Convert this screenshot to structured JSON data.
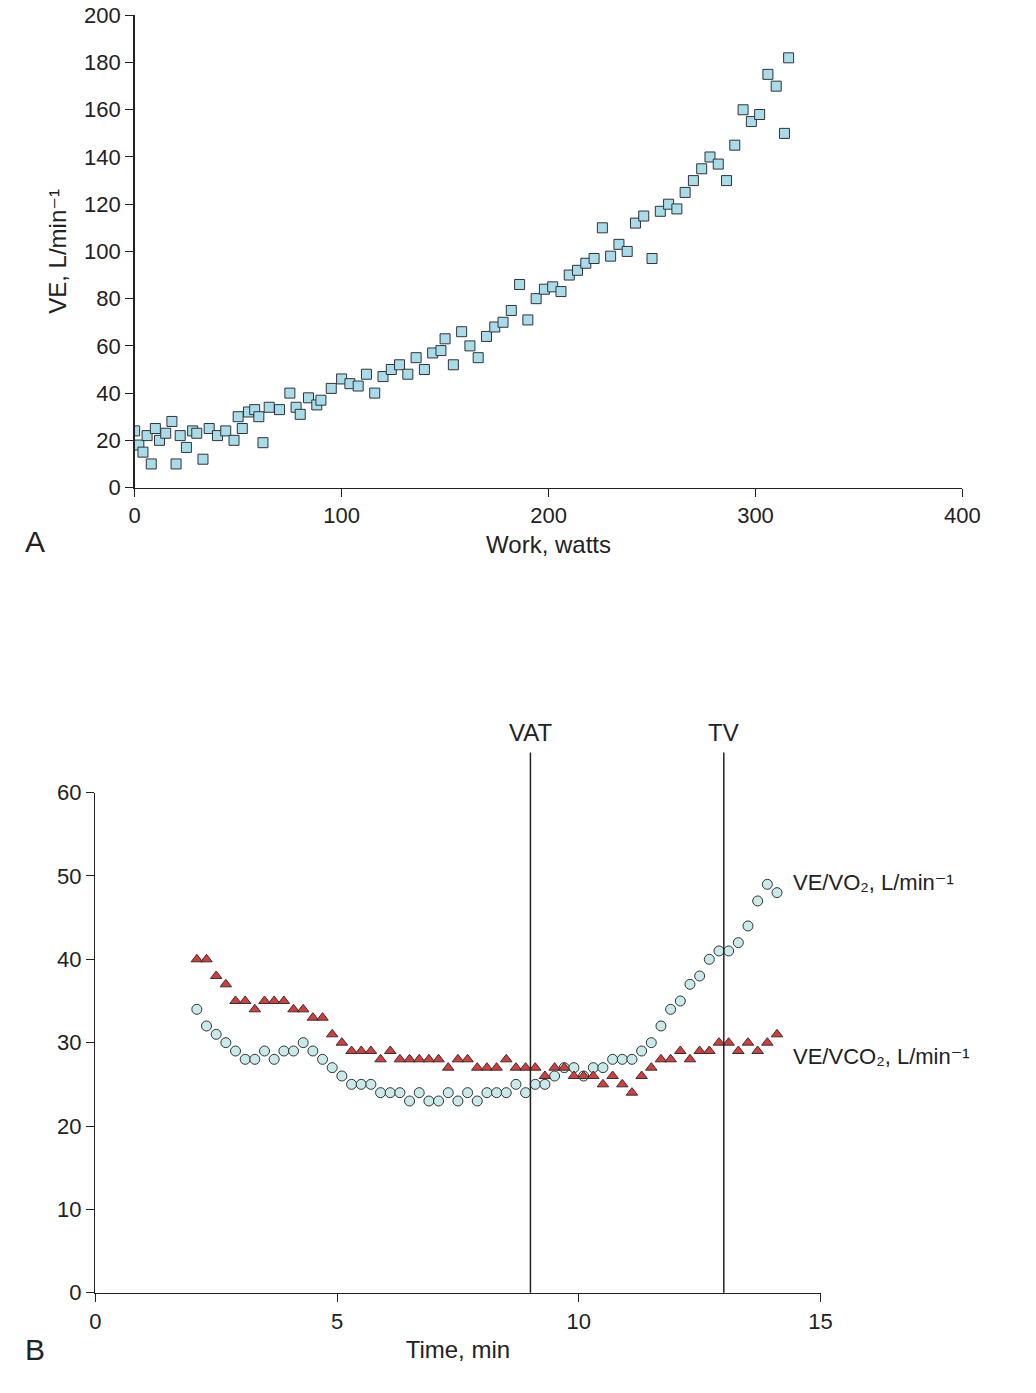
{
  "chart_data": [
    {
      "type": "scatter",
      "title": "A",
      "x_label": "Work, watts",
      "y_label": "VE, L/min⁻¹",
      "xlim": [
        0,
        400
      ],
      "xticks": [
        0,
        100,
        200,
        300,
        400
      ],
      "ylim": [
        0,
        200
      ],
      "yticks": [
        0,
        20,
        40,
        60,
        80,
        100,
        120,
        140,
        160,
        180,
        200
      ],
      "grid": false,
      "marker": "square",
      "color": "#a8dcea",
      "x": [
        0,
        2,
        4,
        6,
        8,
        10,
        12,
        15,
        18,
        20,
        22,
        25,
        28,
        30,
        33,
        36,
        40,
        44,
        48,
        50,
        52,
        55,
        58,
        60,
        62,
        65,
        70,
        75,
        78,
        80,
        84,
        88,
        90,
        95,
        100,
        104,
        108,
        112,
        116,
        120,
        124,
        128,
        132,
        136,
        140,
        144,
        148,
        150,
        154,
        158,
        162,
        166,
        170,
        174,
        178,
        182,
        186,
        190,
        194,
        198,
        202,
        206,
        210,
        214,
        218,
        222,
        226,
        230,
        234,
        238,
        242,
        246,
        250,
        254,
        258,
        262,
        266,
        270,
        274,
        278,
        282,
        286,
        290,
        294,
        298,
        302,
        306,
        310,
        314,
        316
      ],
      "values": [
        24,
        18,
        15,
        22,
        10,
        25,
        20,
        23,
        28,
        10,
        22,
        17,
        24,
        23,
        12,
        25,
        22,
        24,
        20,
        30,
        25,
        32,
        33,
        30,
        19,
        34,
        33,
        40,
        34,
        31,
        38,
        35,
        37,
        42,
        46,
        44,
        43,
        48,
        40,
        47,
        50,
        52,
        48,
        55,
        50,
        57,
        58,
        63,
        52,
        66,
        60,
        55,
        64,
        68,
        70,
        75,
        86,
        71,
        80,
        84,
        85,
        83,
        90,
        92,
        95,
        97,
        110,
        98,
        103,
        100,
        112,
        115,
        97,
        117,
        120,
        118,
        125,
        130,
        135,
        140,
        137,
        130,
        145,
        160,
        155,
        158,
        175,
        170,
        150,
        182
      ]
    },
    {
      "type": "scatter",
      "title": "B",
      "x_label": "Time, min",
      "xlim": [
        0,
        15
      ],
      "xticks": [
        0,
        5,
        10,
        15
      ],
      "ylim": [
        0,
        60
      ],
      "yticks": [
        0,
        10,
        20,
        30,
        40,
        50,
        60
      ],
      "grid": false,
      "vlines": [
        {
          "x": 9,
          "text": "VAT"
        },
        {
          "x": 13,
          "text": "TV"
        }
      ],
      "x": [
        2.1,
        2.3,
        2.5,
        2.7,
        2.9,
        3.1,
        3.3,
        3.5,
        3.7,
        3.9,
        4.1,
        4.3,
        4.5,
        4.7,
        4.9,
        5.1,
        5.3,
        5.5,
        5.7,
        5.9,
        6.1,
        6.3,
        6.5,
        6.7,
        6.9,
        7.1,
        7.3,
        7.5,
        7.7,
        7.9,
        8.1,
        8.3,
        8.5,
        8.7,
        8.9,
        9.1,
        9.3,
        9.5,
        9.7,
        9.9,
        10.1,
        10.3,
        10.5,
        10.7,
        10.9,
        11.1,
        11.3,
        11.5,
        11.7,
        11.9,
        12.1,
        12.3,
        12.5,
        12.7,
        12.9,
        13.1,
        13.3,
        13.5,
        13.7,
        13.9,
        14.1
      ],
      "series": [
        {
          "name": "VE/VO₂, L/min⁻¹",
          "color": "#c8eaea",
          "marker": "circle",
          "values": [
            34,
            32,
            31,
            30,
            29,
            28,
            28,
            29,
            28,
            29,
            29,
            30,
            29,
            28,
            27,
            26,
            25,
            25,
            25,
            24,
            24,
            24,
            23,
            24,
            23,
            23,
            24,
            23,
            24,
            23,
            24,
            24,
            24,
            25,
            24,
            25,
            25,
            26,
            27,
            27,
            26,
            27,
            27,
            28,
            28,
            28,
            29,
            30,
            32,
            34,
            35,
            37,
            38,
            40,
            41,
            41,
            42,
            44,
            47,
            49,
            48
          ]
        },
        {
          "name": "VE/VCO₂, L/min⁻¹",
          "color": "#d93a3a",
          "marker": "triangle-up",
          "values": [
            40,
            40,
            38,
            37,
            35,
            35,
            34,
            35,
            35,
            35,
            34,
            34,
            33,
            33,
            31,
            30,
            29,
            29,
            29,
            28,
            29,
            28,
            28,
            28,
            28,
            28,
            27,
            28,
            28,
            27,
            27,
            27,
            28,
            27,
            27,
            27,
            26,
            27,
            27,
            26,
            26,
            26,
            25,
            26,
            25,
            24,
            26,
            27,
            28,
            28,
            29,
            28,
            29,
            29,
            30,
            30,
            29,
            30,
            29,
            30,
            31
          ]
        }
      ]
    }
  ]
}
